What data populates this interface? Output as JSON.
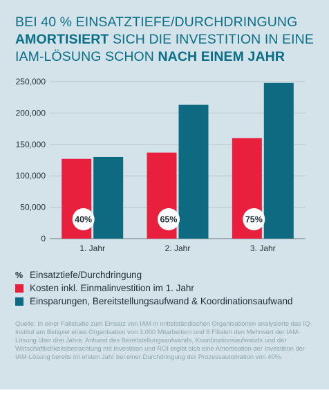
{
  "title": {
    "line1": "BEI 40 % EINSATZTIEFE/DURCHDRINGUNG",
    "line2_bold": "AMORTISIERT",
    "line2_rest": " SICH DIE INVESTITION IN EINE",
    "line3_rest": "IAM-LÖSUNG SCHON ",
    "line3_bold": "NACH EINEM JAHR"
  },
  "chart_data": {
    "type": "bar",
    "categories": [
      "1. Jahr",
      "2. Jahr",
      "3. Jahr"
    ],
    "series": [
      {
        "name": "Kosten inkl. Einmalinvestition im 1. Jahr",
        "values": [
          127000,
          137000,
          160000
        ],
        "color": "#e8203e"
      },
      {
        "name": "Einsparungen, Bereitstellungsaufwand & Koordinationsaufwand",
        "values": [
          130000,
          213000,
          248000
        ],
        "color": "#0e6a80"
      }
    ],
    "badges": [
      "40%",
      "65%",
      "75%"
    ],
    "ylim": [
      0,
      250000
    ],
    "yticks": [
      0,
      50000,
      100000,
      150000,
      200000,
      250000
    ],
    "ytick_labels": [
      "0",
      "50,000",
      "100,000",
      "150,000",
      "200,000",
      "250,000"
    ],
    "grid": true
  },
  "legend": {
    "pct_symbol": "%",
    "pct_label": "Einsatztiefe/Durchdringung",
    "cost_label": "Kosten inkl. Einmalinvestition im 1. Jahr",
    "savings_label": "Einsparungen, Bereitstellungsaufwand & Koordinationsaufwand"
  },
  "source": "Quelle: In einer Fallstudie zum Einsatz von IAM in mittelständischen Organisationen analysierte das IQ-Institut am Beispiel eines Organisation von 3.000 Mitarbeitern und 8 Filialen den Mehrwert der IAM-Lösung über drei Jahre. Anhand des Bereitstellungsaufwands, Koordinationsaufwands und der Wirtschaftlichkeitsbetrachtung mit Investition und ROI ergibt sich eine Amortisation der Investition der IAM-Lösung bereits im ersten Jahr bei einer Durchdringung der Prozessautomation von 40%.",
  "colors": {
    "cost": "#e8203e",
    "savings": "#0e6a80",
    "background": "#d4e3e9"
  }
}
